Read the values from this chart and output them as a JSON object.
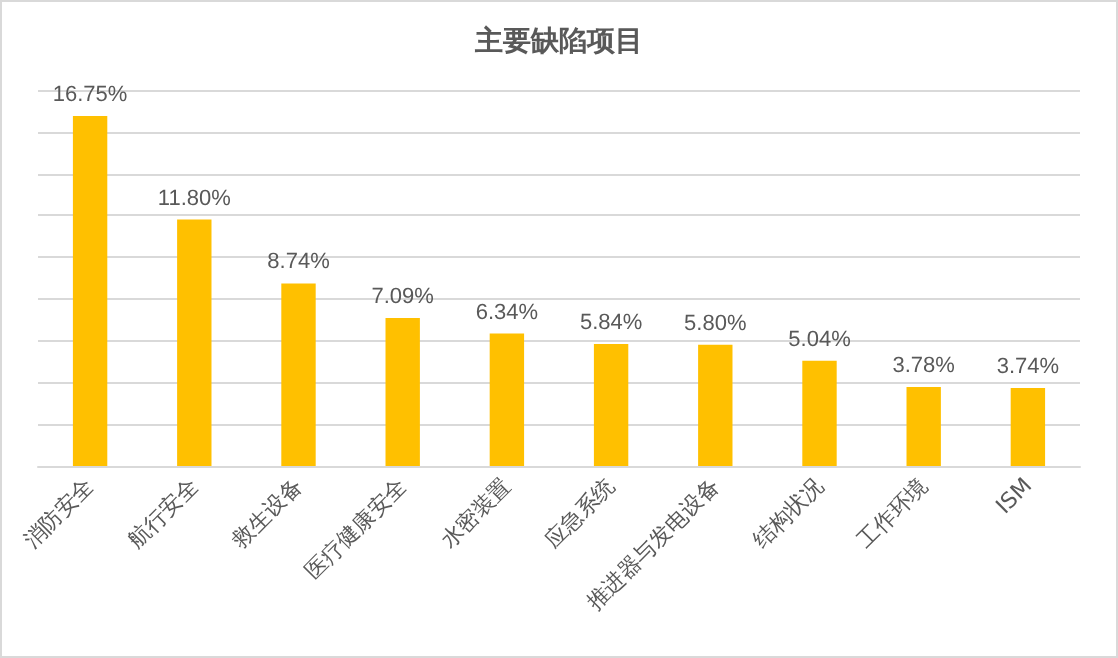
{
  "chart_data": {
    "type": "bar",
    "title": "主要缺陷项目",
    "categories": [
      "消防安全",
      "航行安全",
      "救生设备",
      "医疗健康安全",
      "水密装置",
      "应急系统",
      "推进器与发电设备",
      "结构状况",
      "工作环境",
      "ISM"
    ],
    "values": [
      16.75,
      11.8,
      8.74,
      7.09,
      6.34,
      5.84,
      5.8,
      5.04,
      3.78,
      3.74
    ],
    "value_labels": [
      "16.75%",
      "11.80%",
      "8.74%",
      "7.09%",
      "6.34%",
      "5.84%",
      "5.80%",
      "5.04%",
      "3.78%",
      "3.74%"
    ],
    "color": "#ffc000",
    "ylim": [
      0,
      18
    ],
    "yticks": [
      {
        "value": 0,
        "label": null
      },
      {
        "value": 2,
        "label": null
      },
      {
        "value": 4,
        "label": null
      },
      {
        "value": 6,
        "label": null
      },
      {
        "value": 8,
        "label": null
      },
      {
        "value": 10,
        "label": null
      },
      {
        "value": 12,
        "label": null
      },
      {
        "value": 14,
        "label": null
      },
      {
        "value": 16,
        "label": null
      },
      {
        "value": 18,
        "label": null
      }
    ],
    "tick_labels": "x",
    "grid": "y"
  }
}
